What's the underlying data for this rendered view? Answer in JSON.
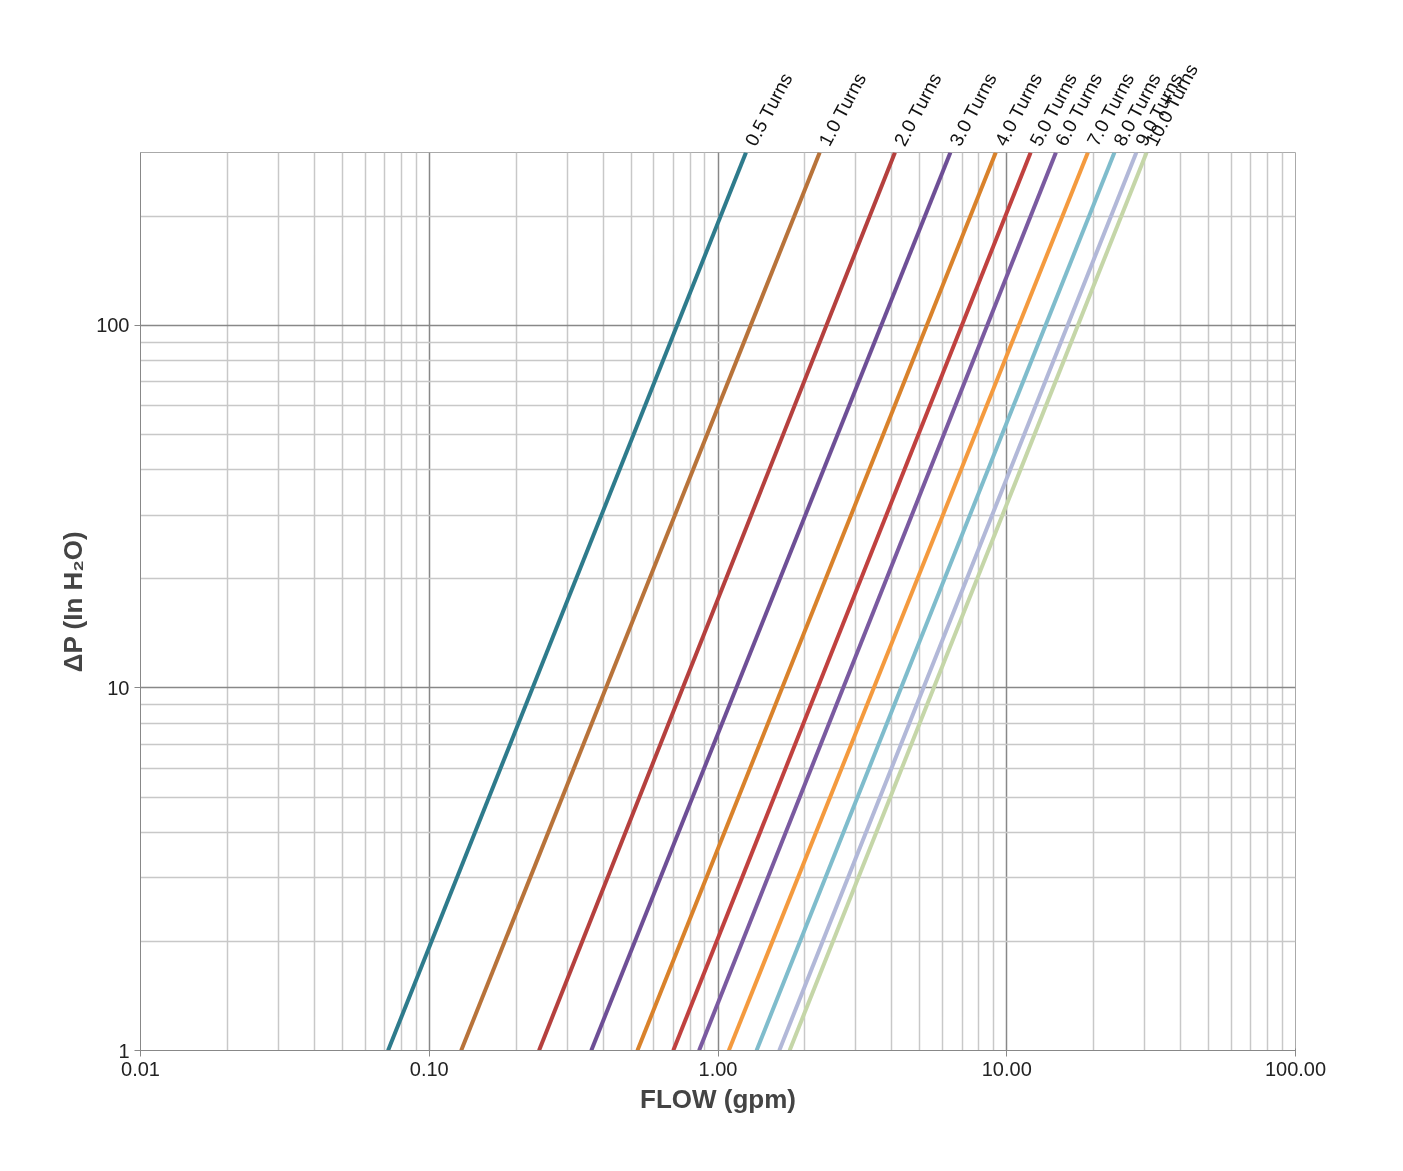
{
  "chart_data": {
    "type": "line",
    "xlabel": "FLOW (gpm)",
    "ylabel": "ΔP (In H₂O)",
    "log": "xy",
    "grid": true,
    "marker": "none",
    "line_style": "solid",
    "xlim": [
      0.01,
      100
    ],
    "ylim": [
      1,
      300
    ],
    "xticks": [
      {
        "value": 0.01,
        "label": "0.01"
      },
      {
        "value": 0.1,
        "label": "0.10"
      },
      {
        "value": 1,
        "label": "1.00"
      },
      {
        "value": 10,
        "label": "10.00"
      },
      {
        "value": 100,
        "label": "100.00"
      }
    ],
    "yticks": [
      1,
      10,
      100
    ],
    "series": [
      {
        "name": "0.5 Turns",
        "color": "#2e7b8c",
        "x": [
          0.072,
          1.25
        ],
        "values": [
          1,
          300
        ]
      },
      {
        "name": "1.0 Turns",
        "color": "#b8733a",
        "x": [
          0.129,
          2.25
        ],
        "values": [
          1,
          300
        ]
      },
      {
        "name": "2.0 Turns",
        "color": "#b5403e",
        "x": [
          0.24,
          4.1
        ],
        "values": [
          1,
          300
        ]
      },
      {
        "name": "3.0 Turns",
        "color": "#6e4f96",
        "x": [
          0.364,
          6.38
        ],
        "values": [
          1,
          300
        ]
      },
      {
        "name": "4.0 Turns",
        "color": "#d9822b",
        "x": [
          0.526,
          9.16
        ],
        "values": [
          1,
          300
        ]
      },
      {
        "name": "5.0 Turns",
        "color": "#c0413f",
        "x": [
          0.7,
          12.1
        ],
        "values": [
          1,
          300
        ]
      },
      {
        "name": "6.0 Turns",
        "color": "#7a5aa0",
        "x": [
          0.86,
          14.8
        ],
        "values": [
          1,
          300
        ]
      },
      {
        "name": "7.0 Turns",
        "color": "#f49a3e",
        "x": [
          1.09,
          19.1
        ],
        "values": [
          1,
          300
        ]
      },
      {
        "name": "8.0 Turns",
        "color": "#7fbccc",
        "x": [
          1.36,
          23.6
        ],
        "values": [
          1,
          300
        ]
      },
      {
        "name": "9.0 Turns",
        "color": "#b2b8d8",
        "x": [
          1.63,
          28.1
        ],
        "values": [
          1,
          300
        ]
      },
      {
        "name": "10.0 Turns",
        "color": "#c5d6a8",
        "x": [
          1.77,
          30.5
        ],
        "values": [
          1,
          300
        ]
      }
    ]
  }
}
